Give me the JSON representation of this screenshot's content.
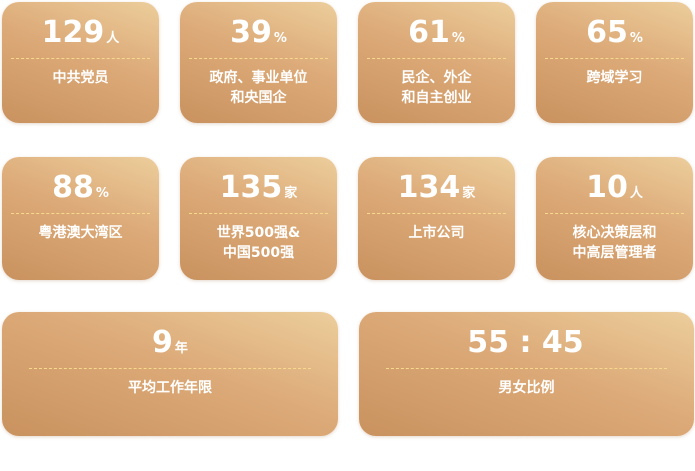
{
  "stats": [
    {
      "value": "129",
      "unit": "人",
      "label": "中共党员"
    },
    {
      "value": "39",
      "unit": "%",
      "label": "政府、事业单位\n和央国企"
    },
    {
      "value": "61",
      "unit": "%",
      "label": "民企、外企\n和自主创业"
    },
    {
      "value": "65",
      "unit": "%",
      "label": "跨域学习"
    },
    {
      "value": "88",
      "unit": "%",
      "label": "粤港澳大湾区"
    },
    {
      "value": "135",
      "unit": "家",
      "label": "世界500强&\n中国500强"
    },
    {
      "value": "134",
      "unit": "家",
      "label": "上市公司"
    },
    {
      "value": "10",
      "unit": "人",
      "label": "核心决策层和\n中高层管理者"
    },
    {
      "value": "9",
      "unit": "年",
      "label": "平均工作年限"
    },
    {
      "value": "55 : 45",
      "unit": "",
      "label": "男女比例"
    }
  ],
  "colors": {
    "card_top": "#ecce9c",
    "card_bottom": "#c9925f",
    "dash": "#f6d98c"
  }
}
